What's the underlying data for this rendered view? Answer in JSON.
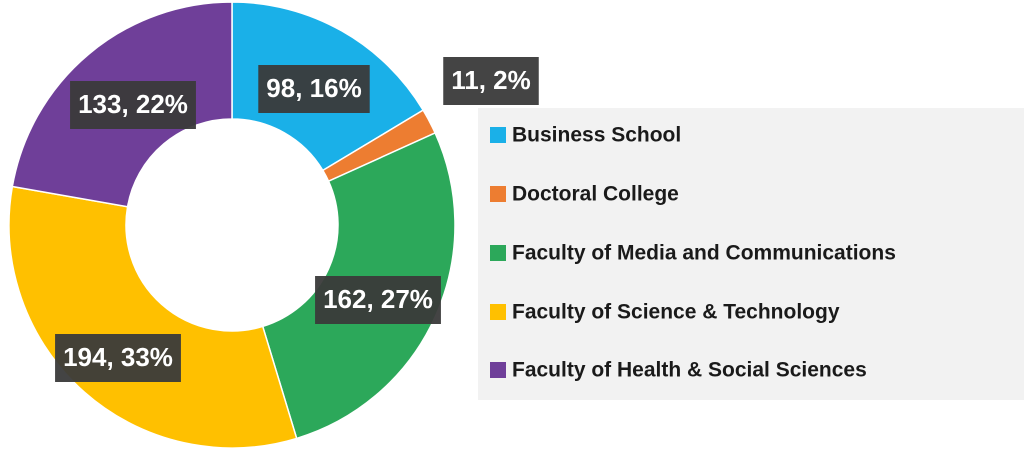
{
  "chart_data": {
    "type": "donut",
    "categories": [
      "Business School",
      "Doctoral College",
      "Faculty of Media and Communications",
      "Faculty of Science & Technology",
      "Faculty of Health & Social Sciences"
    ],
    "values": [
      98,
      11,
      162,
      194,
      133
    ],
    "value_labels": [
      "98, 16%",
      "11, 2%",
      "162, 27%",
      "194, 33%",
      "133, 22%"
    ],
    "colors": [
      "#1ab0e8",
      "#ed7d31",
      "#2ca85a",
      "#ffc000",
      "#6f3f99"
    ],
    "legend": "right"
  }
}
